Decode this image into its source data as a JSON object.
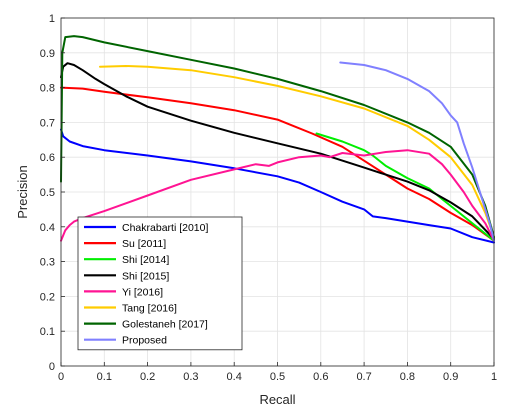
{
  "chart_data": {
    "type": "line",
    "xlabel": "Recall",
    "ylabel": "Precision",
    "xlim": [
      0,
      1
    ],
    "ylim": [
      0,
      1
    ],
    "xticks": [
      "0",
      "0.1",
      "0.2",
      "0.3",
      "0.4",
      "0.5",
      "0.6",
      "0.7",
      "0.8",
      "0.9",
      "1"
    ],
    "yticks": [
      "0",
      "0.1",
      "0.2",
      "0.3",
      "0.4",
      "0.5",
      "0.6",
      "0.7",
      "0.8",
      "0.9",
      "1"
    ],
    "grid": true,
    "legend_position": "bottom-left",
    "series": [
      {
        "name": "Chakrabarti [2010]",
        "color": "#0000ff",
        "points": [
          [
            0,
            0.68
          ],
          [
            0.005,
            0.66
          ],
          [
            0.02,
            0.645
          ],
          [
            0.05,
            0.632
          ],
          [
            0.1,
            0.62
          ],
          [
            0.2,
            0.605
          ],
          [
            0.3,
            0.588
          ],
          [
            0.4,
            0.568
          ],
          [
            0.5,
            0.545
          ],
          [
            0.55,
            0.527
          ],
          [
            0.6,
            0.5
          ],
          [
            0.65,
            0.472
          ],
          [
            0.7,
            0.45
          ],
          [
            0.72,
            0.43
          ],
          [
            0.75,
            0.425
          ],
          [
            0.8,
            0.415
          ],
          [
            0.85,
            0.405
          ],
          [
            0.9,
            0.395
          ],
          [
            0.95,
            0.37
          ],
          [
            1,
            0.355
          ]
        ]
      },
      {
        "name": "Su [2011]",
        "color": "#ff0000",
        "points": [
          [
            0,
            0.8
          ],
          [
            0.05,
            0.797
          ],
          [
            0.1,
            0.788
          ],
          [
            0.2,
            0.772
          ],
          [
            0.3,
            0.755
          ],
          [
            0.4,
            0.735
          ],
          [
            0.5,
            0.708
          ],
          [
            0.58,
            0.668
          ],
          [
            0.65,
            0.63
          ],
          [
            0.7,
            0.59
          ],
          [
            0.75,
            0.55
          ],
          [
            0.8,
            0.51
          ],
          [
            0.85,
            0.48
          ],
          [
            0.9,
            0.44
          ],
          [
            0.95,
            0.405
          ],
          [
            1,
            0.36
          ]
        ]
      },
      {
        "name": "Shi [2014]",
        "color": "#00ee00",
        "points": [
          [
            0.59,
            0.668
          ],
          [
            0.65,
            0.645
          ],
          [
            0.7,
            0.62
          ],
          [
            0.72,
            0.605
          ],
          [
            0.75,
            0.575
          ],
          [
            0.8,
            0.54
          ],
          [
            0.85,
            0.51
          ],
          [
            0.88,
            0.48
          ],
          [
            0.92,
            0.44
          ],
          [
            0.96,
            0.4
          ],
          [
            1,
            0.36
          ]
        ]
      },
      {
        "name": "Shi [2015]",
        "color": "#000000",
        "points": [
          [
            0,
            0.83
          ],
          [
            0.005,
            0.86
          ],
          [
            0.015,
            0.87
          ],
          [
            0.03,
            0.865
          ],
          [
            0.05,
            0.85
          ],
          [
            0.08,
            0.825
          ],
          [
            0.1,
            0.81
          ],
          [
            0.15,
            0.775
          ],
          [
            0.2,
            0.745
          ],
          [
            0.3,
            0.705
          ],
          [
            0.4,
            0.67
          ],
          [
            0.5,
            0.64
          ],
          [
            0.6,
            0.61
          ],
          [
            0.7,
            0.57
          ],
          [
            0.8,
            0.53
          ],
          [
            0.85,
            0.505
          ],
          [
            0.9,
            0.47
          ],
          [
            0.95,
            0.43
          ],
          [
            1,
            0.365
          ]
        ]
      },
      {
        "name": "Yi [2016]",
        "color": "#ff1493",
        "points": [
          [
            0,
            0.36
          ],
          [
            0.01,
            0.39
          ],
          [
            0.02,
            0.405
          ],
          [
            0.03,
            0.415
          ],
          [
            0.05,
            0.425
          ],
          [
            0.1,
            0.445
          ],
          [
            0.2,
            0.49
          ],
          [
            0.3,
            0.535
          ],
          [
            0.4,
            0.565
          ],
          [
            0.45,
            0.58
          ],
          [
            0.48,
            0.575
          ],
          [
            0.5,
            0.585
          ],
          [
            0.55,
            0.6
          ],
          [
            0.6,
            0.605
          ],
          [
            0.62,
            0.6
          ],
          [
            0.65,
            0.612
          ],
          [
            0.7,
            0.605
          ],
          [
            0.75,
            0.615
          ],
          [
            0.8,
            0.62
          ],
          [
            0.85,
            0.61
          ],
          [
            0.88,
            0.58
          ],
          [
            0.9,
            0.55
          ],
          [
            0.93,
            0.5
          ],
          [
            0.95,
            0.46
          ],
          [
            0.98,
            0.41
          ],
          [
            1,
            0.36
          ]
        ]
      },
      {
        "name": "Tang [2016]",
        "color": "#ffcc00",
        "points": [
          [
            0.09,
            0.86
          ],
          [
            0.15,
            0.862
          ],
          [
            0.2,
            0.86
          ],
          [
            0.3,
            0.85
          ],
          [
            0.4,
            0.83
          ],
          [
            0.5,
            0.805
          ],
          [
            0.6,
            0.775
          ],
          [
            0.7,
            0.74
          ],
          [
            0.8,
            0.69
          ],
          [
            0.85,
            0.65
          ],
          [
            0.9,
            0.6
          ],
          [
            0.95,
            0.52
          ],
          [
            0.98,
            0.44
          ],
          [
            1,
            0.37
          ]
        ]
      },
      {
        "name": "Golestaneh [2017]",
        "color": "#006400",
        "points": [
          [
            0,
            0.53
          ],
          [
            0.003,
            0.9
          ],
          [
            0.01,
            0.945
          ],
          [
            0.03,
            0.948
          ],
          [
            0.05,
            0.945
          ],
          [
            0.1,
            0.93
          ],
          [
            0.2,
            0.905
          ],
          [
            0.3,
            0.88
          ],
          [
            0.4,
            0.855
          ],
          [
            0.5,
            0.825
          ],
          [
            0.6,
            0.79
          ],
          [
            0.7,
            0.75
          ],
          [
            0.8,
            0.7
          ],
          [
            0.85,
            0.67
          ],
          [
            0.9,
            0.63
          ],
          [
            0.95,
            0.55
          ],
          [
            0.98,
            0.46
          ],
          [
            1,
            0.37
          ]
        ]
      },
      {
        "name": "Proposed",
        "color": "#8080ff",
        "points": [
          [
            0.645,
            0.872
          ],
          [
            0.7,
            0.865
          ],
          [
            0.75,
            0.85
          ],
          [
            0.8,
            0.825
          ],
          [
            0.85,
            0.79
          ],
          [
            0.88,
            0.755
          ],
          [
            0.9,
            0.72
          ],
          [
            0.915,
            0.7
          ],
          [
            0.93,
            0.64
          ],
          [
            0.95,
            0.57
          ],
          [
            0.97,
            0.49
          ],
          [
            0.99,
            0.41
          ],
          [
            1,
            0.36
          ]
        ]
      }
    ]
  }
}
